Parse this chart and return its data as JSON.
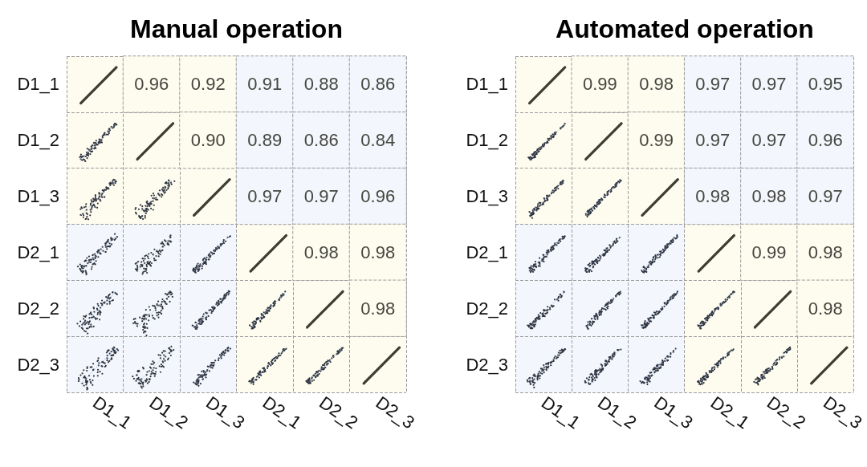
{
  "chart_data": [
    {
      "type": "heatmap",
      "title": "Manual operation",
      "categories": [
        "D1_1",
        "D1_2",
        "D1_3",
        "D2_1",
        "D2_2",
        "D2_3"
      ],
      "y_categories": [
        "D1_1",
        "D1_2",
        "D1_3",
        "D2_1",
        "D2_2",
        "D2_3"
      ],
      "cells": [
        [
          null,
          0.96,
          0.92,
          0.91,
          0.88,
          0.86
        ],
        [
          null,
          null,
          0.9,
          0.89,
          0.86,
          0.84
        ],
        [
          null,
          null,
          null,
          0.97,
          0.97,
          0.96
        ],
        [
          null,
          null,
          null,
          null,
          0.98,
          0.98
        ],
        [
          null,
          null,
          null,
          null,
          null,
          0.98
        ],
        [
          null,
          null,
          null,
          null,
          null,
          null
        ]
      ],
      "cell_labels": [
        [
          null,
          "0.96",
          "0.92",
          "0.91",
          "0.88",
          "0.86"
        ],
        [
          null,
          null,
          "0.90",
          "0.89",
          "0.86",
          "0.84"
        ],
        [
          null,
          null,
          null,
          "0.97",
          "0.97",
          "0.96"
        ],
        [
          null,
          null,
          null,
          null,
          "0.98",
          "0.98"
        ],
        [
          null,
          null,
          null,
          null,
          null,
          "0.98"
        ],
        [
          null,
          null,
          null,
          null,
          null,
          null
        ]
      ],
      "colors": [
        [
          "#fefcef",
          "#fefcef",
          "#fefcef",
          "#f3f6fc",
          "#f3f6fc",
          "#f3f6fc"
        ],
        [
          "#fefcef",
          "#fefcef",
          "#fefcef",
          "#f3f6fc",
          "#f3f6fc",
          "#f3f6fc"
        ],
        [
          "#fefcef",
          "#fefcef",
          "#fefcef",
          "#f3f6fc",
          "#f3f6fc",
          "#f3f6fc"
        ],
        [
          "#f3f6fc",
          "#f3f6fc",
          "#f3f6fc",
          "#fefcef",
          "#fefcef",
          "#fefcef"
        ],
        [
          "#f3f6fc",
          "#f3f6fc",
          "#f3f6fc",
          "#fefcef",
          "#fefcef",
          "#fefcef"
        ],
        [
          "#f3f6fc",
          "#f3f6fc",
          "#f3f6fc",
          "#fefcef",
          "#fefcef",
          "#fefcef"
        ]
      ],
      "grid": true
    },
    {
      "type": "heatmap",
      "title": "Automated operation",
      "categories": [
        "D1_1",
        "D1_2",
        "D1_3",
        "D2_1",
        "D2_2",
        "D2_3"
      ],
      "y_categories": [
        "D1_1",
        "D1_2",
        "D1_3",
        "D2_1",
        "D2_2",
        "D2_3"
      ],
      "cells": [
        [
          null,
          0.99,
          0.98,
          0.97,
          0.97,
          0.95
        ],
        [
          null,
          null,
          0.99,
          0.97,
          0.97,
          0.96
        ],
        [
          null,
          null,
          null,
          0.98,
          0.98,
          0.97
        ],
        [
          null,
          null,
          null,
          null,
          0.99,
          0.98
        ],
        [
          null,
          null,
          null,
          null,
          null,
          0.98
        ],
        [
          null,
          null,
          null,
          null,
          null,
          null
        ]
      ],
      "cell_labels": [
        [
          null,
          "0.99",
          "0.98",
          "0.97",
          "0.97",
          "0.95"
        ],
        [
          null,
          null,
          "0.99",
          "0.97",
          "0.97",
          "0.96"
        ],
        [
          null,
          null,
          null,
          "0.98",
          "0.98",
          "0.97"
        ],
        [
          null,
          null,
          null,
          null,
          "0.99",
          "0.98"
        ],
        [
          null,
          null,
          null,
          null,
          null,
          "0.98"
        ],
        [
          null,
          null,
          null,
          null,
          null,
          null
        ]
      ],
      "colors": [
        [
          "#fefcef",
          "#fefcef",
          "#fefcef",
          "#f3f6fc",
          "#f3f6fc",
          "#f3f6fc"
        ],
        [
          "#fefcef",
          "#fefcef",
          "#fefcef",
          "#f3f6fc",
          "#f3f6fc",
          "#f3f6fc"
        ],
        [
          "#fefcef",
          "#fefcef",
          "#fefcef",
          "#f3f6fc",
          "#f3f6fc",
          "#f3f6fc"
        ],
        [
          "#f3f6fc",
          "#f3f6fc",
          "#f3f6fc",
          "#fefcef",
          "#fefcef",
          "#fefcef"
        ],
        [
          "#f3f6fc",
          "#f3f6fc",
          "#f3f6fc",
          "#fefcef",
          "#fefcef",
          "#fefcef"
        ],
        [
          "#f3f6fc",
          "#f3f6fc",
          "#f3f6fc",
          "#fefcef",
          "#fefcef",
          "#fefcef"
        ]
      ],
      "grid": true
    }
  ]
}
